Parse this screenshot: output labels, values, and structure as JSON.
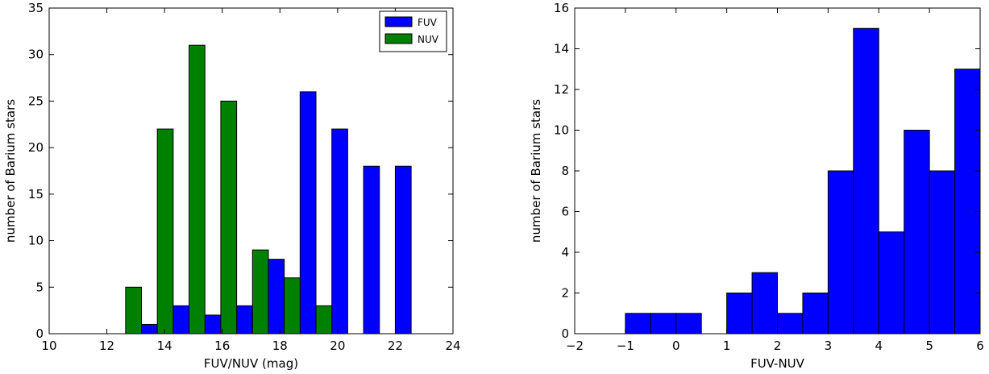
{
  "chart_data": [
    {
      "type": "bar",
      "xlabel": "FUV/NUV (mag)",
      "ylabel": "number of Barium stars",
      "xlim": [
        10,
        24
      ],
      "ylim": [
        0,
        35
      ],
      "xticks": [
        "10",
        "12",
        "14",
        "16",
        "18",
        "20",
        "22",
        "24"
      ],
      "yticks": [
        "0",
        "5",
        "10",
        "15",
        "20",
        "25",
        "30",
        "35"
      ],
      "legend_position": "top-right",
      "bin_edges": [
        11.0,
        12.1,
        13.2,
        14.3,
        15.4,
        16.5,
        17.6,
        18.7,
        19.8,
        20.9,
        22.0,
        23.1
      ],
      "series": [
        {
          "name": "FUV",
          "color": "#0000ff",
          "values": [
            0,
            0,
            1,
            3,
            2,
            3,
            8,
            26,
            22,
            18,
            18
          ]
        },
        {
          "name": "NUV",
          "color": "#008000",
          "values": [
            0,
            5,
            22,
            31,
            25,
            9,
            6,
            3,
            0,
            0,
            0
          ]
        }
      ]
    },
    {
      "type": "bar",
      "xlabel": "FUV-NUV",
      "ylabel": "number of Barium stars",
      "xlim": [
        -2,
        6
      ],
      "ylim": [
        0,
        16
      ],
      "xticks": [
        "−2",
        "−1",
        "0",
        "1",
        "2",
        "3",
        "4",
        "5",
        "6"
      ],
      "yticks": [
        "0",
        "2",
        "4",
        "6",
        "8",
        "10",
        "12",
        "14",
        "16"
      ],
      "bin_edges": [
        -2.0,
        -1.5,
        -1.0,
        -0.5,
        0.0,
        0.5,
        1.0,
        1.5,
        2.0,
        2.5,
        3.0,
        3.5,
        4.0,
        4.5,
        5.0,
        5.5,
        6.0
      ],
      "series": [
        {
          "color": "#0000ff",
          "values": [
            0,
            0,
            1,
            1,
            1,
            0,
            2,
            3,
            1,
            2,
            8,
            15,
            5,
            10,
            8,
            13
          ]
        }
      ]
    }
  ]
}
